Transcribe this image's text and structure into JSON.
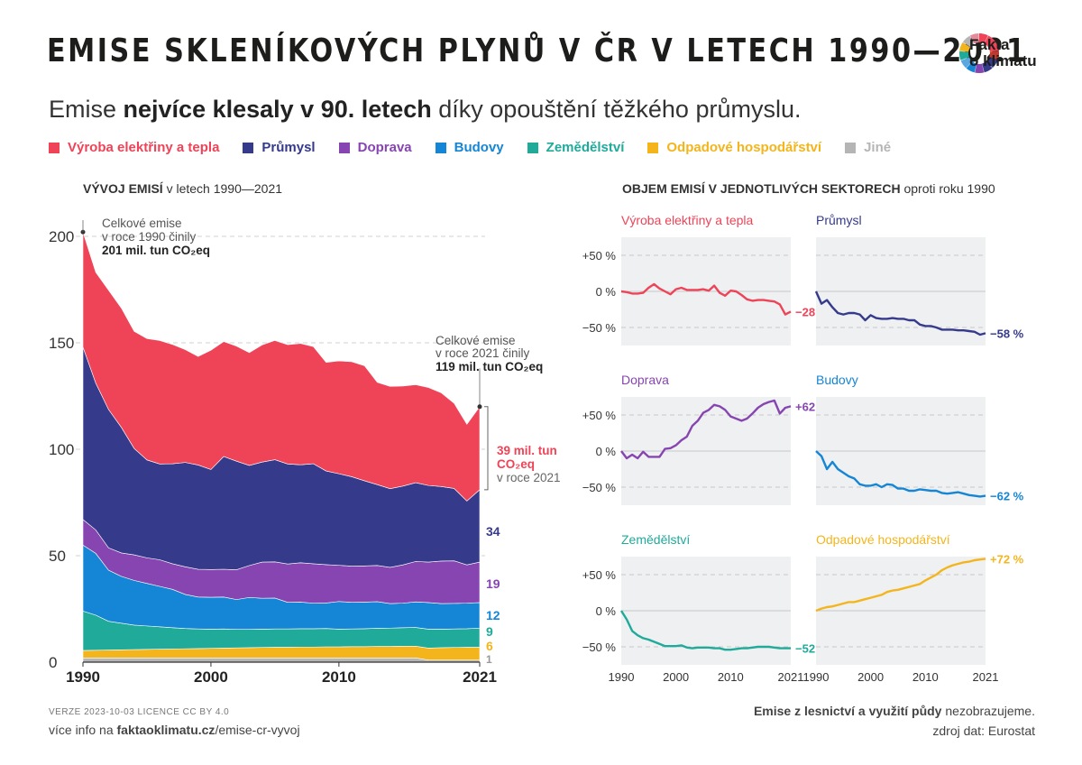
{
  "header": {
    "title": "EMISE SKLENÍKOVÝCH PLYNŮ V ČR V LETECH 1990—2021",
    "subtitle_pre": "Emise ",
    "subtitle_bold": "nejvíce klesaly v 90. letech",
    "subtitle_post": " díky opouštění těžkého průmyslu.",
    "logo_line1": "Fakta",
    "logo_line2": "o klimatu"
  },
  "colors": {
    "energy": "#ef4357",
    "industry": "#353a8b",
    "transport": "#8645b0",
    "buildings": "#1585d5",
    "agriculture": "#20aa9a",
    "waste": "#f4b51c",
    "other": "#b5b5b5"
  },
  "legend": [
    {
      "label": "Výroba elektřiny a tepla",
      "color": "#ef4357"
    },
    {
      "label": "Průmysl",
      "color": "#353a8b"
    },
    {
      "label": "Doprava",
      "color": "#8645b0"
    },
    {
      "label": "Budovy",
      "color": "#1585d5"
    },
    {
      "label": "Zemědělství",
      "color": "#20aa9a"
    },
    {
      "label": "Odpadové hospodářství",
      "color": "#f4b51c"
    },
    {
      "label": "Jiné",
      "color": "#b5b5b5"
    }
  ],
  "left_heading": {
    "bold": "VÝVOJ EMISÍ",
    "rest": " v letech 1990—2021"
  },
  "right_heading": {
    "bold": "OBJEM EMISÍ V JEDNOTLIVÝCH SEKTORECH",
    "rest": " oproti roku 1990"
  },
  "chart_data": [
    {
      "type": "area",
      "stacked": true,
      "x": [
        1990,
        1991,
        1992,
        1993,
        1994,
        1995,
        1996,
        1997,
        1998,
        1999,
        2000,
        2001,
        2002,
        2003,
        2004,
        2005,
        2006,
        2007,
        2008,
        2009,
        2010,
        2011,
        2012,
        2013,
        2014,
        2015,
        2016,
        2017,
        2018,
        2019,
        2020,
        2021
      ],
      "ylim": [
        0,
        200
      ],
      "yticks": [
        0,
        50,
        100,
        150,
        200
      ],
      "xticks": [
        1990,
        2000,
        2010,
        2021
      ],
      "series": [
        {
          "name": "Jiné",
          "key": "other",
          "values": [
            2,
            2,
            2,
            2,
            2,
            2,
            2,
            2,
            2,
            2,
            2,
            2,
            2,
            2,
            2,
            2,
            2,
            2,
            2,
            2,
            2,
            2,
            2,
            2,
            2,
            2,
            2,
            1,
            1,
            1,
            1,
            1
          ]
        },
        {
          "name": "Odpadové hospodářství",
          "key": "waste",
          "values": [
            3.5,
            3.6,
            3.7,
            3.8,
            3.9,
            4,
            4.1,
            4.2,
            4.3,
            4.4,
            4.5,
            4.6,
            4.7,
            4.8,
            4.9,
            5,
            5,
            5.1,
            5.1,
            5.2,
            5.2,
            5.3,
            5.3,
            5.4,
            5.4,
            5.5,
            5.5,
            5.6,
            5.8,
            5.9,
            6,
            6
          ]
        },
        {
          "name": "Zemědělství",
          "key": "agriculture",
          "values": [
            18.5,
            16.5,
            13.5,
            12.5,
            11.5,
            11,
            10.5,
            10,
            9.5,
            9.2,
            9,
            9,
            8.7,
            8.6,
            8.6,
            8.6,
            8.6,
            8.6,
            8.6,
            8.6,
            8.3,
            8.3,
            8.4,
            8.5,
            8.6,
            8.7,
            8.8,
            8.9,
            8.7,
            8.7,
            8.7,
            9
          ]
        },
        {
          "name": "Budovy",
          "key": "buildings",
          "values": [
            31,
            29,
            24,
            22,
            21,
            20,
            19,
            18,
            16,
            15,
            15,
            15,
            14,
            15,
            14.5,
            14.5,
            12.5,
            12.5,
            12,
            12,
            13,
            12.5,
            12.5,
            12.5,
            11.5,
            11.5,
            12,
            12.5,
            12,
            12,
            12,
            12
          ]
        },
        {
          "name": "Doprava",
          "key": "transport",
          "values": [
            12,
            11,
            10.5,
            11,
            12,
            12,
            12.5,
            12,
            13,
            13,
            13,
            13,
            14,
            15,
            17,
            17,
            18,
            18.5,
            18.5,
            18,
            17,
            17,
            17,
            17,
            17,
            18,
            19,
            19,
            20,
            20,
            18,
            19
          ]
        },
        {
          "name": "Průmysl",
          "key": "industry",
          "values": [
            81,
            69,
            65,
            59,
            50,
            46,
            45,
            47,
            49,
            49,
            47,
            53,
            51,
            47,
            47,
            48,
            47,
            46,
            47,
            44,
            43,
            42,
            40,
            38,
            37,
            37,
            37,
            36,
            35,
            34,
            30,
            34
          ]
        },
        {
          "name": "Výroba elektřiny a tepla",
          "key": "energy",
          "values": [
            54,
            52,
            56,
            56,
            55,
            57,
            58,
            56,
            53,
            51,
            56,
            54,
            54,
            53,
            55,
            56,
            56,
            57,
            55,
            51,
            53,
            54,
            54,
            48,
            48,
            47,
            46,
            46,
            44,
            40,
            36,
            39
          ]
        }
      ],
      "annotations": {
        "start_line1": "Celkové emise",
        "start_line2": "v roce 1990 činily",
        "start_line3": "201 mil. tun CO₂eq",
        "end_line1": "Celkové emise",
        "end_line2": "v roce 2021 činily",
        "end_line3": "119 mil. tun CO₂eq",
        "energy_line1": "39 mil. tun",
        "energy_line2": "CO₂eq",
        "energy_line3": "v roce 2021",
        "end_values": [
          {
            "key": "industry",
            "label": "34"
          },
          {
            "key": "transport",
            "label": "19"
          },
          {
            "key": "buildings",
            "label": "12"
          },
          {
            "key": "agriculture",
            "label": "9"
          },
          {
            "key": "waste",
            "label": "6"
          },
          {
            "key": "other",
            "label": "1"
          }
        ]
      }
    },
    {
      "type": "line",
      "small_multiples": true,
      "x": [
        1990,
        1991,
        1992,
        1993,
        1994,
        1995,
        1996,
        1997,
        1998,
        1999,
        2000,
        2001,
        2002,
        2003,
        2004,
        2005,
        2006,
        2007,
        2008,
        2009,
        2010,
        2011,
        2012,
        2013,
        2014,
        2015,
        2016,
        2017,
        2018,
        2019,
        2020,
        2021
      ],
      "ylim": [
        -75,
        75
      ],
      "yticks": [
        {
          "v": 50,
          "label": "+50 %"
        },
        {
          "v": 0,
          "label": "0 %"
        },
        {
          "v": -50,
          "label": "−50 %"
        }
      ],
      "xticks": [
        1990,
        2000,
        2010,
        2021
      ],
      "panels": [
        {
          "title": "Výroba elektřiny a tepla",
          "key": "energy",
          "end_label": "−28 %",
          "values": [
            0,
            -1,
            -3,
            -3,
            -2,
            5,
            10,
            4,
            0,
            -4,
            3,
            5,
            2,
            2,
            2,
            3,
            1,
            8,
            -2,
            -6,
            1,
            0,
            -5,
            -11,
            -13,
            -12,
            -12,
            -13,
            -14,
            -18,
            -32,
            -28
          ]
        },
        {
          "title": "Průmysl",
          "key": "industry",
          "end_label": "−58 %",
          "values": [
            0,
            -17,
            -12,
            -22,
            -30,
            -32,
            -30,
            -30,
            -32,
            -40,
            -33,
            -37,
            -38,
            -38,
            -37,
            -38,
            -38,
            -40,
            -40,
            -46,
            -48,
            -48,
            -50,
            -53,
            -53,
            -53,
            -54,
            -54,
            -55,
            -56,
            -60,
            -58
          ]
        },
        {
          "title": "Doprava",
          "key": "transport",
          "end_label": "+62 %",
          "values": [
            0,
            -10,
            -5,
            -10,
            -1,
            -8,
            -8,
            -8,
            3,
            4,
            8,
            15,
            20,
            35,
            42,
            53,
            57,
            64,
            62,
            57,
            48,
            45,
            42,
            45,
            52,
            60,
            65,
            68,
            70,
            52,
            60,
            62
          ]
        },
        {
          "title": "Budovy",
          "key": "buildings",
          "end_label": "−62 %",
          "values": [
            0,
            -7,
            -25,
            -15,
            -25,
            -30,
            -35,
            -38,
            -46,
            -48,
            -48,
            -46,
            -50,
            -46,
            -47,
            -52,
            -52,
            -55,
            -55,
            -53,
            -54,
            -55,
            -55,
            -58,
            -59,
            -58,
            -57,
            -59,
            -61,
            -62,
            -63,
            -62
          ]
        },
        {
          "title": "Zemědělství",
          "key": "agriculture",
          "end_label": "−52 %",
          "values": [
            0,
            -12,
            -28,
            -34,
            -38,
            -40,
            -43,
            -46,
            -49,
            -49,
            -49,
            -48,
            -51,
            -52,
            -51,
            -51,
            -51,
            -52,
            -52,
            -54,
            -54,
            -53,
            -52,
            -52,
            -51,
            -50,
            -50,
            -50,
            -51,
            -52,
            -52,
            -52
          ]
        },
        {
          "title": "Odpadové hospodářství",
          "key": "waste",
          "end_label": "+72 %",
          "values": [
            0,
            3,
            5,
            6,
            8,
            10,
            12,
            12,
            14,
            16,
            18,
            20,
            22,
            26,
            28,
            29,
            31,
            33,
            35,
            37,
            42,
            46,
            50,
            56,
            60,
            63,
            65,
            67,
            68,
            70,
            71,
            72
          ]
        }
      ]
    }
  ],
  "footer": {
    "version": "VERZE 2023-10-03    LICENCE CC BY 4.0",
    "more_pre": "více info na ",
    "more_bold": "faktaoklimatu.cz",
    "more_post": "/emise-cr-vyvoj",
    "note_bold": "Emise z lesnictví a využití půdy",
    "note_rest": " nezobrazujeme.",
    "source": "zdroj dat: Eurostat"
  }
}
